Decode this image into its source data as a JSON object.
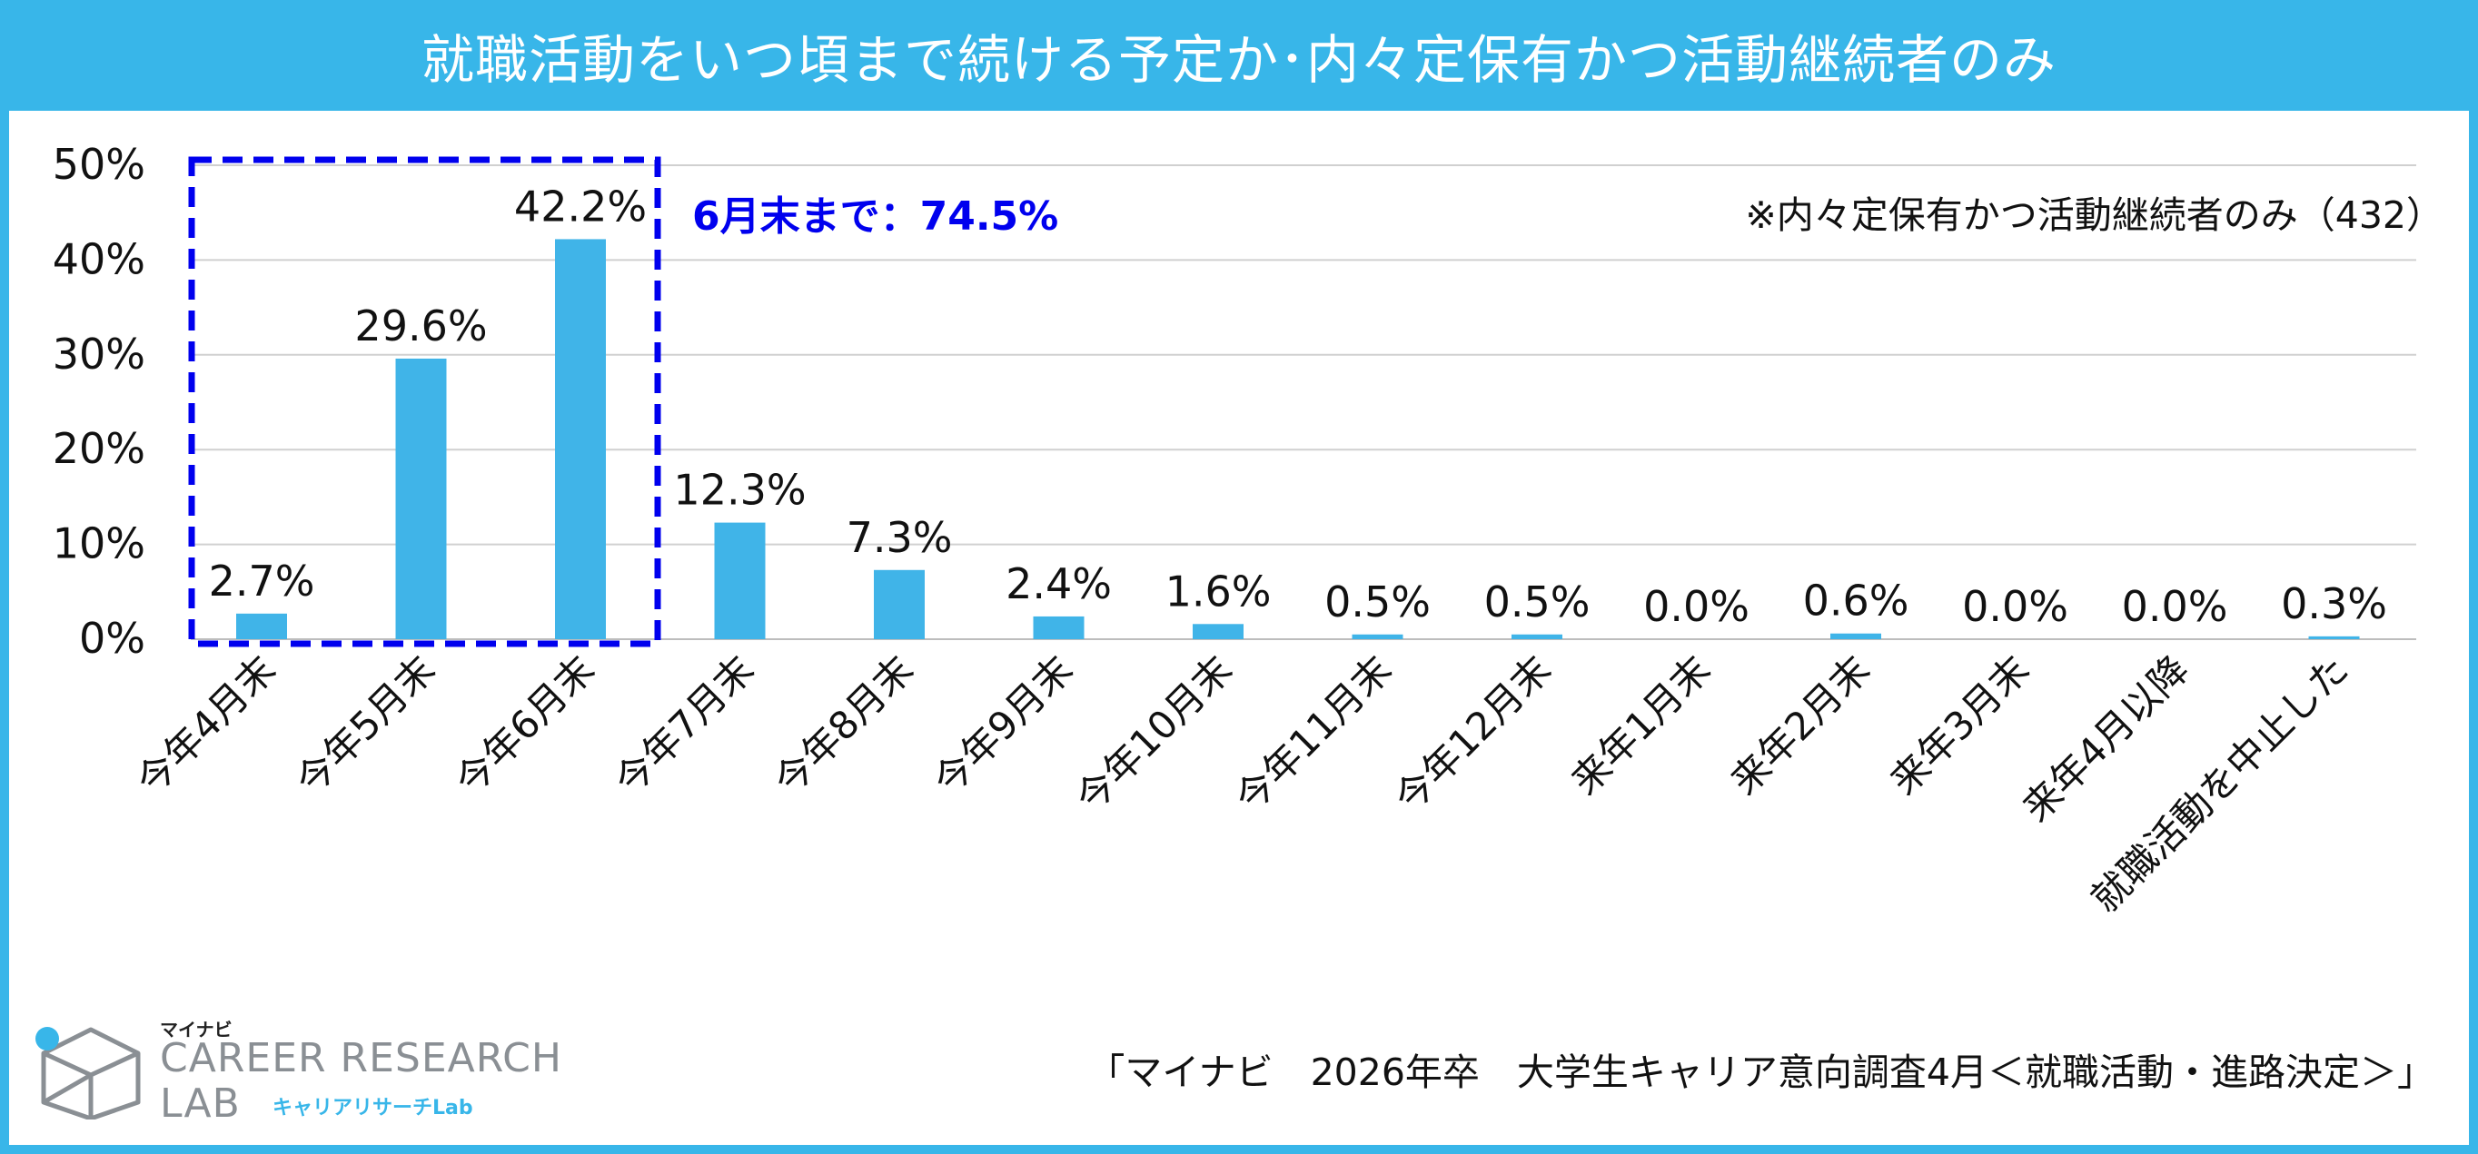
{
  "header": {
    "title": "就職活動をいつ頃まで続ける予定か･内々定保有かつ活動継続者のみ"
  },
  "annotations": {
    "highlight_label": "6月末まで：74.5%",
    "note": "※内々定保有かつ活動継続者のみ（432）",
    "source": "「マイナビ　2026年卒　大学生キャリア意向調査4月＜就職活動・進路決定＞」"
  },
  "logo": {
    "brand": "マイナビ",
    "line1": "CAREER RESEARCH",
    "line2": "LAB",
    "sub": "キャリアリサーチLab"
  },
  "colors": {
    "header": "#38b6e9",
    "bar": "#40b4e8",
    "highlight_box": "#0000ee",
    "grid": "#d0d0d0"
  },
  "chart_data": {
    "type": "bar",
    "title": "就職活動をいつ頃まで続ける予定か･内々定保有かつ活動継続者のみ",
    "categories": [
      "今年4月末",
      "今年5月末",
      "今年6月末",
      "今年7月末",
      "今年8月末",
      "今年9月末",
      "今年10月末",
      "今年11月末",
      "今年12月末",
      "来年1月末",
      "来年2月末",
      "来年3月末",
      "来年4月以降",
      "就職活動を中止した"
    ],
    "values": [
      2.7,
      29.6,
      42.2,
      12.3,
      7.3,
      2.4,
      1.6,
      0.5,
      0.5,
      0.0,
      0.6,
      0.0,
      0.0,
      0.3
    ],
    "value_labels": [
      "2.7%",
      "29.6%",
      "42.2%",
      "12.3%",
      "7.3%",
      "2.4%",
      "1.6%",
      "0.5%",
      "0.5%",
      "0.0%",
      "0.6%",
      "0.0%",
      "0.0%",
      "0.3%"
    ],
    "yticks": [
      "0%",
      "10%",
      "20%",
      "30%",
      "40%",
      "50%"
    ],
    "ylim": [
      0,
      50
    ],
    "grid": true,
    "highlight_range": [
      0,
      2
    ]
  }
}
